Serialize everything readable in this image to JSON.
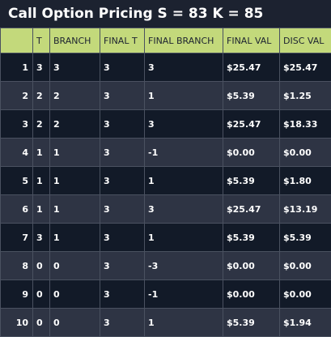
{
  "title": "Call Option Pricing S = 83 K = 85",
  "headers": [
    "",
    "T",
    "BRANCH",
    "FINAL T",
    "FINAL BRANCH",
    "FINAL VAL",
    "DISC VAL"
  ],
  "rows": [
    [
      "1",
      "3",
      "3",
      "3",
      "3",
      "$25.47",
      "$25.47"
    ],
    [
      "2",
      "2",
      "2",
      "3",
      "1",
      "$5.39",
      "$1.25"
    ],
    [
      "3",
      "2",
      "2",
      "3",
      "3",
      "$25.47",
      "$18.33"
    ],
    [
      "4",
      "1",
      "1",
      "3",
      "-1",
      "$0.00",
      "$0.00"
    ],
    [
      "5",
      "1",
      "1",
      "3",
      "1",
      "$5.39",
      "$1.80"
    ],
    [
      "6",
      "1",
      "1",
      "3",
      "3",
      "$25.47",
      "$13.19"
    ],
    [
      "7",
      "3",
      "1",
      "3",
      "1",
      "$5.39",
      "$5.39"
    ],
    [
      "8",
      "0",
      "0",
      "3",
      "-3",
      "$0.00",
      "$0.00"
    ],
    [
      "9",
      "0",
      "0",
      "3",
      "-1",
      "$0.00",
      "$0.00"
    ],
    [
      "10",
      "0",
      "0",
      "3",
      "1",
      "$5.39",
      "$1.94"
    ]
  ],
  "colors": {
    "background": "#1c2230",
    "header": "#c3d97b",
    "row_dark": "#121a28",
    "row_light": "#2e3444"
  }
}
